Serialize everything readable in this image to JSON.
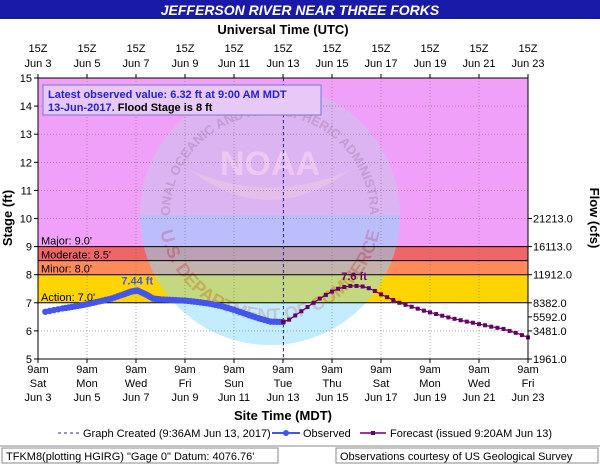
{
  "header": {
    "title": "JEFFERSON RIVER NEAR THREE FORKS",
    "top_axis_title": "Universal Time (UTC)",
    "bottom_axis_title": "Site Time (MDT)",
    "left_axis_title": "Stage (ft)",
    "right_axis_title": "Flow (cfs)"
  },
  "latest": {
    "line1": "Latest observed value: 6.32 ft at 9:00 AM MDT",
    "line2_date": "13-Jun-2017.",
    "line2_flood": "Flood Stage is 8 ft"
  },
  "legend": {
    "created": "Graph Created (9:36AM Jun 13, 2017)",
    "observed": "Observed",
    "forecast": "Forecast (issued 9:20AM Jun 13)"
  },
  "footer": {
    "left": "TFKM8(plotting HGIRG) \"Gage 0\" Datum: 4076.76'",
    "right": "Observations courtesy of US Geological Survey"
  },
  "watermark": {
    "logo_text": "NOAA",
    "arc_top": "NATIONAL OCEANIC AND ATMOSPHERIC ADMINISTRATION",
    "arc_bottom": "U.S. DEPARTMENT OF COMMERCE"
  },
  "colors": {
    "title_bar": "#1a1aa8",
    "plot_bg": "#f0a0f8",
    "major": "#ee6666",
    "moderate": "#ff8a5c",
    "minor": "#ffd400",
    "action": "#ffff66",
    "normal": "#ffffff",
    "observed": "#4455ee",
    "forecast": "#660066",
    "created_line": "#2a2aaa"
  },
  "chart_data": {
    "type": "line",
    "x_unit": "days since Jun 3 9am MDT",
    "xlim": [
      0,
      20
    ],
    "ylim": [
      5,
      15
    ],
    "y_ticks": [
      5,
      6,
      7,
      8,
      9,
      10,
      11,
      12,
      13,
      14,
      15
    ],
    "right_ticks": [
      {
        "stage": 5,
        "label": "1961.0"
      },
      {
        "stage": 6,
        "label": "3481.0"
      },
      {
        "stage": 6.5,
        "label": "5592.0"
      },
      {
        "stage": 7,
        "label": "8382.0"
      },
      {
        "stage": 8,
        "label": "11912.0"
      },
      {
        "stage": 9,
        "label": "16113.0"
      },
      {
        "stage": 10,
        "label": "21213.0"
      }
    ],
    "bottom_ticks": [
      {
        "x": 0,
        "time": "9am",
        "day": "Sat",
        "date": "Jun 3"
      },
      {
        "x": 2,
        "time": "9am",
        "day": "Mon",
        "date": "Jun 5"
      },
      {
        "x": 4,
        "time": "9am",
        "day": "Wed",
        "date": "Jun 7"
      },
      {
        "x": 6,
        "time": "9am",
        "day": "Fri",
        "date": "Jun 9"
      },
      {
        "x": 8,
        "time": "9am",
        "day": "Sun",
        "date": "Jun 11"
      },
      {
        "x": 10,
        "time": "9am",
        "day": "Tue",
        "date": "Jun 13"
      },
      {
        "x": 12,
        "time": "9am",
        "day": "Thu",
        "date": "Jun 15"
      },
      {
        "x": 14,
        "time": "9am",
        "day": "Sat",
        "date": "Jun 17"
      },
      {
        "x": 16,
        "time": "9am",
        "day": "Mon",
        "date": "Jun 19"
      },
      {
        "x": 18,
        "time": "9am",
        "day": "Wed",
        "date": "Jun 21"
      },
      {
        "x": 20,
        "time": "9am",
        "day": "Fri",
        "date": "Jun 23"
      }
    ],
    "top_ticks": [
      {
        "x": 0,
        "time": "15Z",
        "date": "Jun 3"
      },
      {
        "x": 2,
        "time": "15Z",
        "date": "Jun 5"
      },
      {
        "x": 4,
        "time": "15Z",
        "date": "Jun 7"
      },
      {
        "x": 6,
        "time": "15Z",
        "date": "Jun 9"
      },
      {
        "x": 8,
        "time": "15Z",
        "date": "Jun 11"
      },
      {
        "x": 10,
        "time": "15Z",
        "date": "Jun 13"
      },
      {
        "x": 12,
        "time": "15Z",
        "date": "Jun 15"
      },
      {
        "x": 14,
        "time": "15Z",
        "date": "Jun 17"
      },
      {
        "x": 16,
        "time": "15Z",
        "date": "Jun 19"
      },
      {
        "x": 18,
        "time": "15Z",
        "date": "Jun 21"
      },
      {
        "x": 20,
        "time": "15Z",
        "date": "Jun 23"
      }
    ],
    "flood_categories": [
      {
        "name": "major",
        "label": "Major: 9.0'",
        "stage": 9.0
      },
      {
        "name": "moderate",
        "label": "Moderate: 8.5'",
        "stage": 8.5
      },
      {
        "name": "minor",
        "label": "Minor: 8.0'",
        "stage": 8.0
      },
      {
        "name": "action",
        "label": "Action: 7.0'",
        "stage": 7.0
      }
    ],
    "created_x": 10.02,
    "observed": {
      "name": "Observed",
      "points": [
        [
          0.3,
          6.68
        ],
        [
          1.0,
          6.8
        ],
        [
          1.5,
          6.87
        ],
        [
          2.0,
          6.95
        ],
        [
          2.5,
          7.05
        ],
        [
          3.0,
          7.15
        ],
        [
          3.5,
          7.3
        ],
        [
          3.8,
          7.4
        ],
        [
          4.05,
          7.44
        ],
        [
          4.4,
          7.3
        ],
        [
          4.7,
          7.15
        ],
        [
          5.0,
          7.12
        ],
        [
          5.5,
          7.1
        ],
        [
          6.0,
          7.08
        ],
        [
          6.5,
          7.03
        ],
        [
          7.0,
          6.97
        ],
        [
          7.5,
          6.88
        ],
        [
          8.0,
          6.75
        ],
        [
          8.5,
          6.6
        ],
        [
          9.0,
          6.45
        ],
        [
          9.5,
          6.33
        ],
        [
          10.0,
          6.32
        ]
      ]
    },
    "forecast": {
      "name": "Forecast (issued 9:20AM Jun 13)",
      "points": [
        [
          10.0,
          6.32
        ],
        [
          10.25,
          6.4
        ],
        [
          10.5,
          6.55
        ],
        [
          10.75,
          6.7
        ],
        [
          11.0,
          6.85
        ],
        [
          11.25,
          7.0
        ],
        [
          11.5,
          7.15
        ],
        [
          11.75,
          7.28
        ],
        [
          12.0,
          7.4
        ],
        [
          12.25,
          7.5
        ],
        [
          12.5,
          7.56
        ],
        [
          12.75,
          7.6
        ],
        [
          13.0,
          7.6
        ],
        [
          13.25,
          7.58
        ],
        [
          13.5,
          7.52
        ],
        [
          13.75,
          7.42
        ],
        [
          14.0,
          7.3
        ],
        [
          14.25,
          7.2
        ],
        [
          14.5,
          7.1
        ],
        [
          14.75,
          7.0
        ],
        [
          15.0,
          6.93
        ],
        [
          15.25,
          6.86
        ],
        [
          15.5,
          6.79
        ],
        [
          15.75,
          6.72
        ],
        [
          16.0,
          6.66
        ],
        [
          16.25,
          6.6
        ],
        [
          16.5,
          6.54
        ],
        [
          16.75,
          6.48
        ],
        [
          17.0,
          6.43
        ],
        [
          17.25,
          6.38
        ],
        [
          17.5,
          6.33
        ],
        [
          17.75,
          6.29
        ],
        [
          18.0,
          6.24
        ],
        [
          18.25,
          6.2
        ],
        [
          18.5,
          6.15
        ],
        [
          18.75,
          6.11
        ],
        [
          19.0,
          6.07
        ],
        [
          19.25,
          6.0
        ],
        [
          19.5,
          5.93
        ],
        [
          19.75,
          5.85
        ],
        [
          20.0,
          5.77
        ]
      ]
    },
    "annotations": [
      {
        "x": 4.05,
        "y": 7.44,
        "text": "7.44 ft",
        "series": "observed"
      },
      {
        "x": 12.9,
        "y": 7.6,
        "text": "7.6 ft",
        "series": "forecast"
      }
    ]
  }
}
